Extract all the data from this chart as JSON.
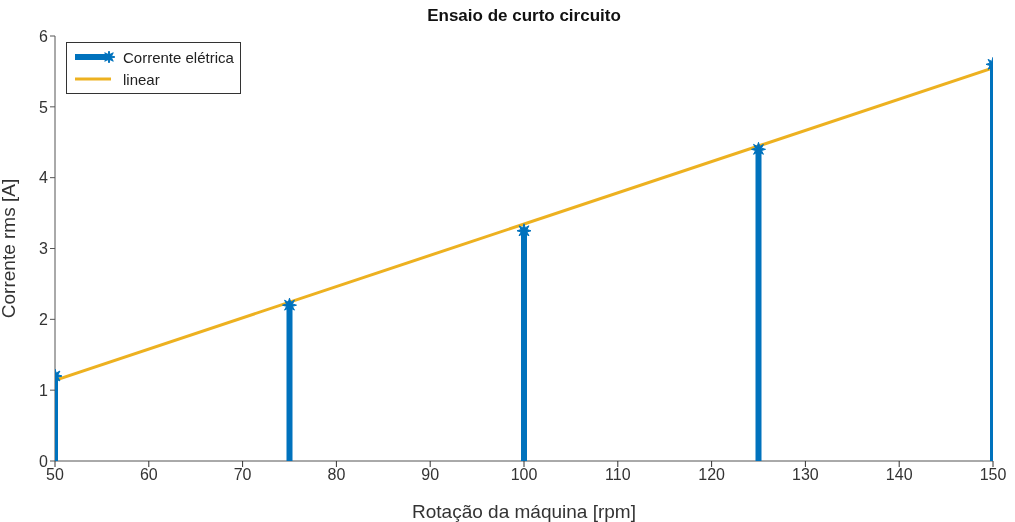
{
  "chart_data": {
    "type": "lollipop",
    "title": "Ensaio de curto circuito",
    "xlabel": "Rotação da máquina [rpm]",
    "ylabel": "Corrente rms [A]",
    "x": [
      50,
      75,
      100,
      125,
      150
    ],
    "series": [
      {
        "name": "Corrente elétrica",
        "color": "#0072bd",
        "marker": "star",
        "values": [
          1.2,
          2.2,
          3.25,
          4.4,
          5.6
        ]
      },
      {
        "name": "linear",
        "type": "line",
        "color": "#edb120",
        "x": [
          50,
          150
        ],
        "values": [
          1.14,
          5.55
        ]
      }
    ],
    "xlim": [
      50,
      150
    ],
    "xticks": [
      50,
      60,
      70,
      80,
      90,
      100,
      110,
      120,
      130,
      140,
      150
    ],
    "ylim": [
      0,
      6
    ],
    "yticks": [
      0,
      1,
      2,
      3,
      4,
      5,
      6
    ],
    "grid": false,
    "legend": "top left"
  }
}
